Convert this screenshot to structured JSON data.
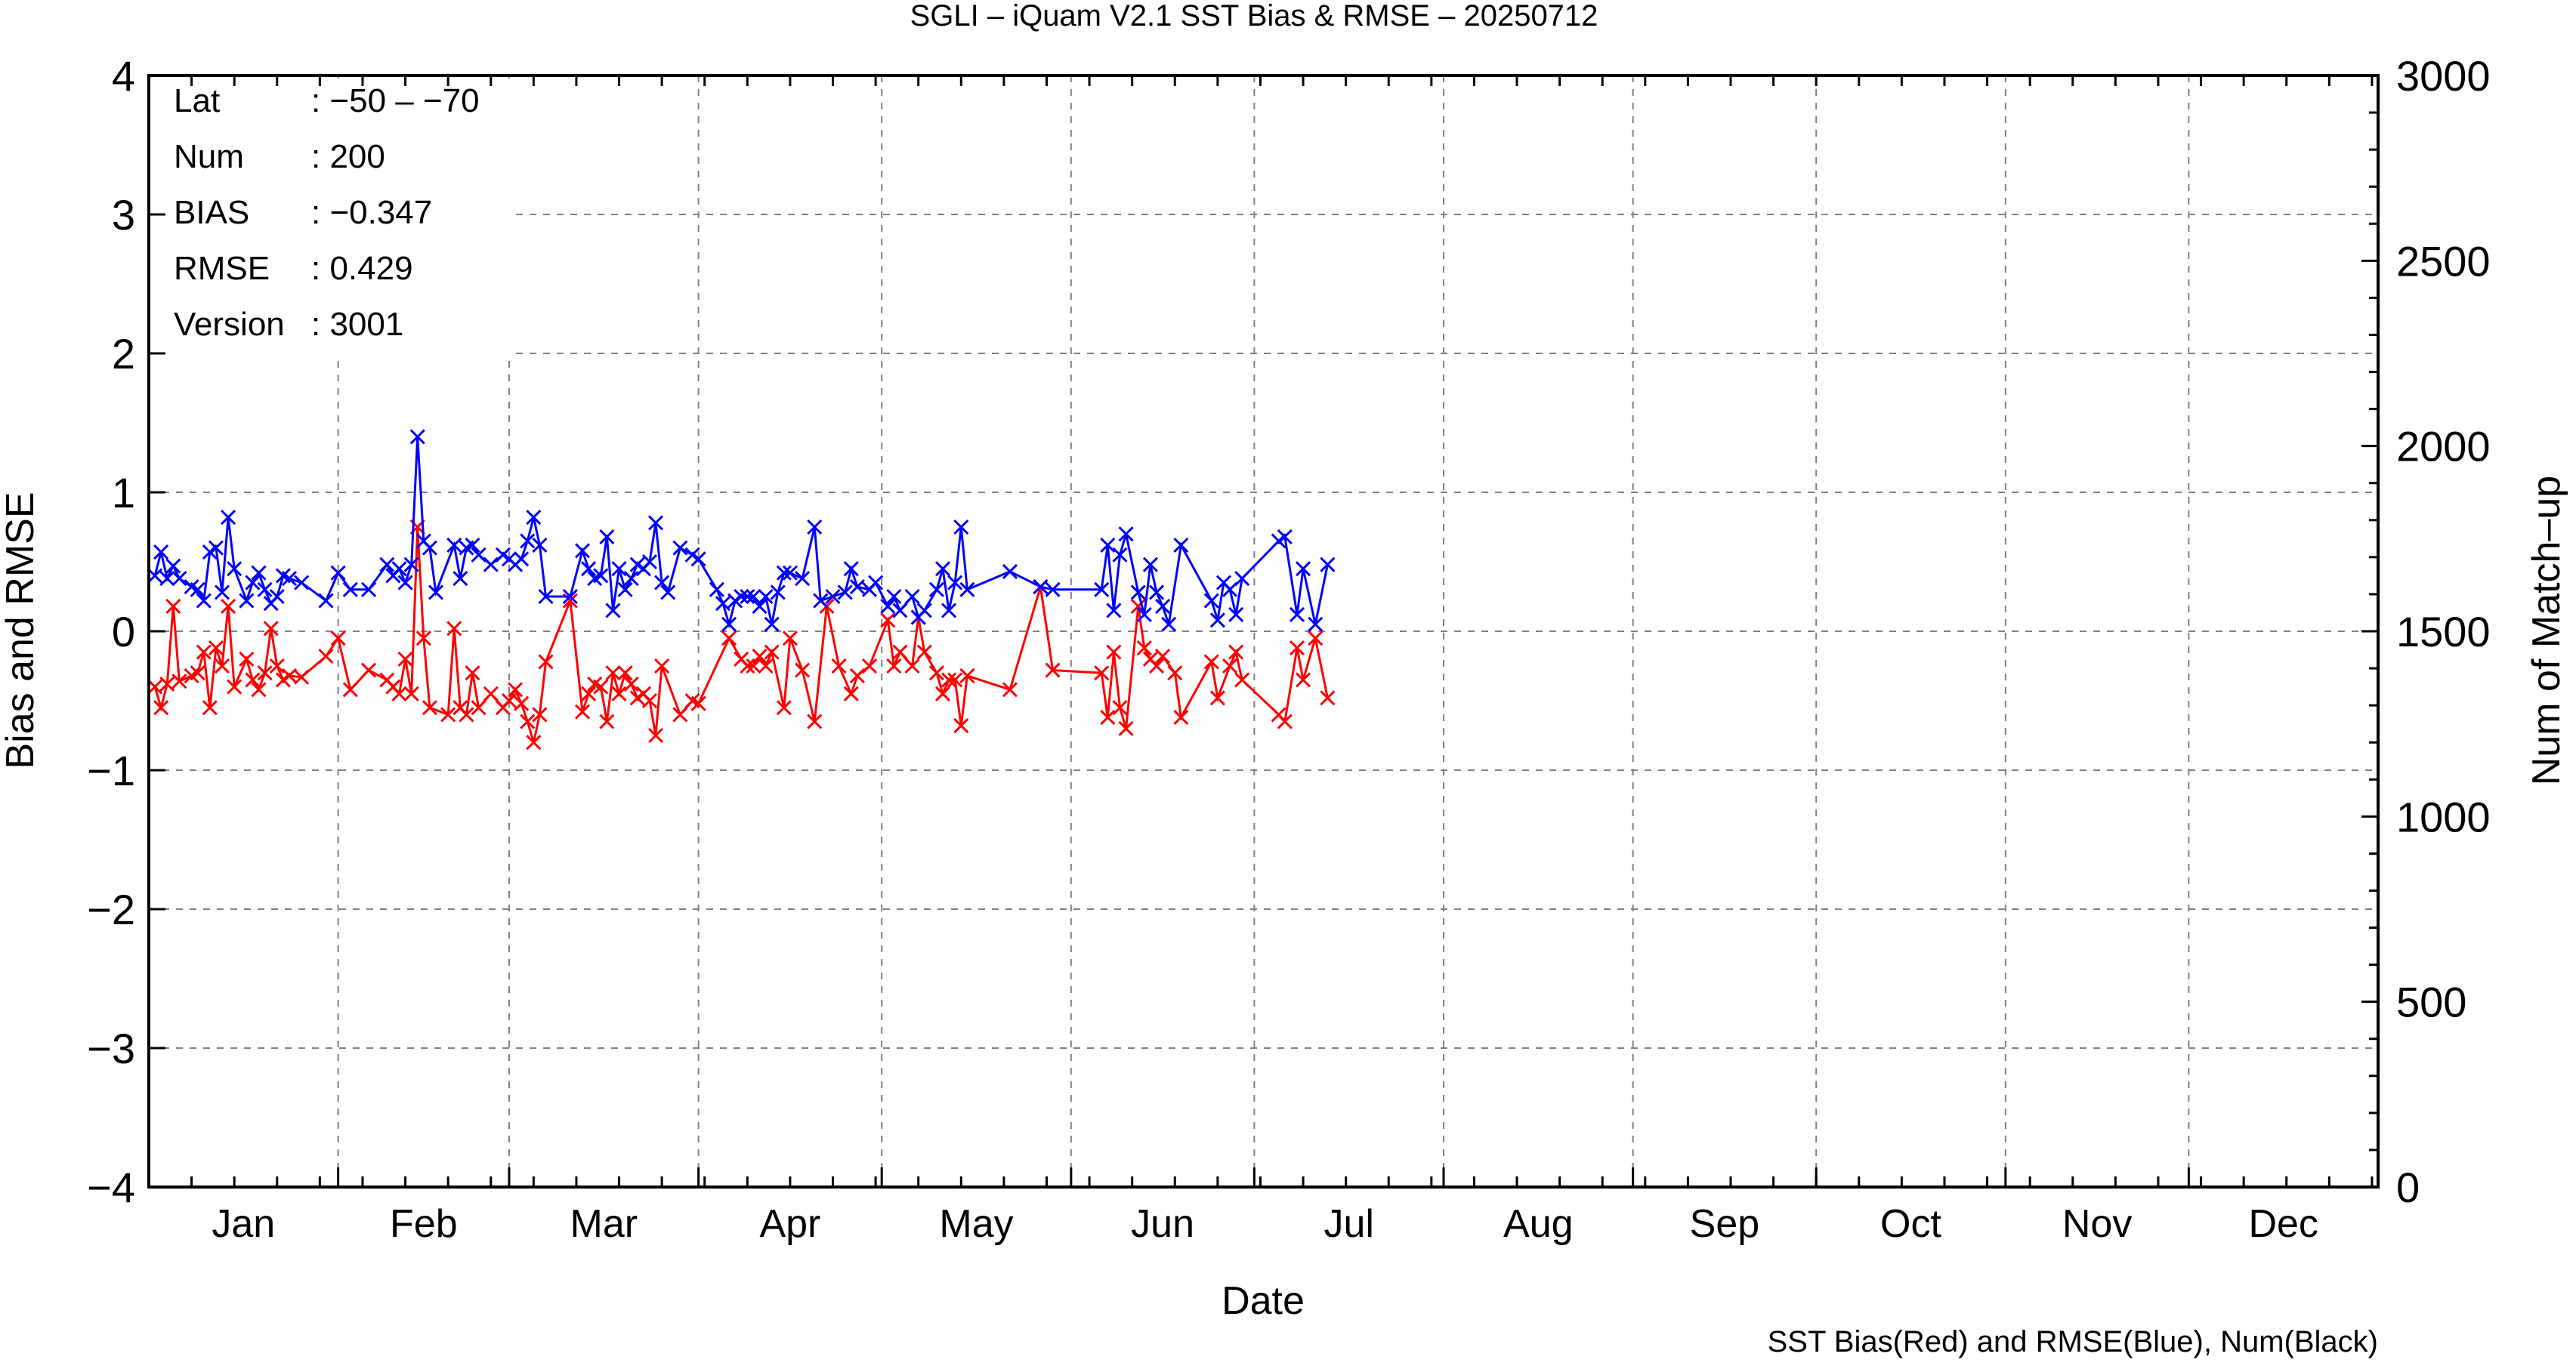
{
  "chart_data": {
    "type": "line",
    "title": "SGLI – iQuam V2.1 SST Bias & RMSE  – 20250712",
    "xlabel": "Date",
    "ylabel_left": "Bias and RMSE",
    "ylabel_right": "Num of Match–up",
    "footer": "SST Bias(Red) and RMSE(Blue), Num(Black)",
    "x_unit": "day of year 2025",
    "xlim": [
      1,
      366
    ],
    "ylim_left": [
      -4,
      4
    ],
    "ylim_right": [
      0,
      3000
    ],
    "yticks_left": [
      "−4",
      "−3",
      "−2",
      "−1",
      "0",
      "1",
      "2",
      "3",
      "4"
    ],
    "yticks_right": [
      "0",
      "500",
      "1000",
      "1500",
      "2000",
      "2500",
      "3000"
    ],
    "months": [
      {
        "label": "Jan",
        "start": 1,
        "days": 31
      },
      {
        "label": "Feb",
        "start": 32,
        "days": 28
      },
      {
        "label": "Mar",
        "start": 60,
        "days": 31
      },
      {
        "label": "Apr",
        "start": 91,
        "days": 30
      },
      {
        "label": "May",
        "start": 121,
        "days": 31
      },
      {
        "label": "Jun",
        "start": 152,
        "days": 30
      },
      {
        "label": "Jul",
        "start": 182,
        "days": 31
      },
      {
        "label": "Aug",
        "start": 213,
        "days": 31
      },
      {
        "label": "Sep",
        "start": 244,
        "days": 30
      },
      {
        "label": "Oct",
        "start": 274,
        "days": 31
      },
      {
        "label": "Nov",
        "start": 305,
        "days": 30
      },
      {
        "label": "Dec",
        "start": 335,
        "days": 31
      }
    ],
    "grid": true,
    "stats": [
      {
        "key": "Lat",
        "value": ": −50 – −70"
      },
      {
        "key": "Num",
        "value": ": 200"
      },
      {
        "key": "BIAS",
        "value": ": −0.347"
      },
      {
        "key": "RMSE",
        "value": ": 0.429"
      },
      {
        "key": "Version",
        "value": ": 3001"
      }
    ],
    "series": [
      {
        "color": "#ff0000",
        "points": [
          [
            2,
            -0.4
          ],
          [
            3,
            -0.55
          ],
          [
            4,
            -0.38
          ],
          [
            5,
            0.18
          ],
          [
            6,
            -0.36
          ],
          [
            8,
            -0.32
          ],
          [
            9,
            -0.3
          ],
          [
            10,
            -0.15
          ],
          [
            11,
            -0.55
          ],
          [
            12,
            -0.12
          ],
          [
            13,
            -0.25
          ],
          [
            14,
            0.18
          ],
          [
            15,
            -0.4
          ],
          [
            17,
            -0.2
          ],
          [
            18,
            -0.35
          ],
          [
            19,
            -0.42
          ],
          [
            20,
            -0.3
          ],
          [
            21,
            0.02
          ],
          [
            22,
            -0.25
          ],
          [
            23,
            -0.35
          ],
          [
            24,
            -0.32
          ],
          [
            26,
            -0.33
          ],
          [
            30,
            -0.18
          ],
          [
            32,
            -0.05
          ],
          [
            34,
            -0.42
          ],
          [
            37,
            -0.28
          ],
          [
            40,
            -0.35
          ],
          [
            41,
            -0.4
          ],
          [
            42,
            -0.45
          ],
          [
            43,
            -0.2
          ],
          [
            44,
            -0.45
          ],
          [
            45,
            0.75
          ],
          [
            46,
            -0.05
          ],
          [
            47,
            -0.55
          ],
          [
            50,
            -0.6
          ],
          [
            51,
            0.02
          ],
          [
            52,
            -0.55
          ],
          [
            53,
            -0.6
          ],
          [
            54,
            -0.3
          ],
          [
            55,
            -0.55
          ],
          [
            57,
            -0.45
          ],
          [
            59,
            -0.55
          ],
          [
            60,
            -0.5
          ],
          [
            61,
            -0.42
          ],
          [
            62,
            -0.52
          ],
          [
            63,
            -0.65
          ],
          [
            64,
            -0.8
          ],
          [
            65,
            -0.6
          ],
          [
            66,
            -0.22
          ],
          [
            70,
            0.22
          ],
          [
            72,
            -0.58
          ],
          [
            73,
            -0.45
          ],
          [
            74,
            -0.38
          ],
          [
            75,
            -0.4
          ],
          [
            76,
            -0.65
          ],
          [
            77,
            -0.3
          ],
          [
            78,
            -0.45
          ],
          [
            79,
            -0.3
          ],
          [
            80,
            -0.38
          ],
          [
            81,
            -0.48
          ],
          [
            82,
            -0.45
          ],
          [
            83,
            -0.5
          ],
          [
            84,
            -0.75
          ],
          [
            85,
            -0.25
          ],
          [
            88,
            -0.6
          ],
          [
            90,
            -0.5
          ],
          [
            91,
            -0.52
          ],
          [
            96,
            -0.05
          ],
          [
            98,
            -0.2
          ],
          [
            99,
            -0.25
          ],
          [
            100,
            -0.25
          ],
          [
            101,
            -0.18
          ],
          [
            102,
            -0.25
          ],
          [
            103,
            -0.15
          ],
          [
            105,
            -0.55
          ],
          [
            106,
            -0.05
          ],
          [
            108,
            -0.28
          ],
          [
            110,
            -0.65
          ],
          [
            112,
            0.18
          ],
          [
            114,
            -0.25
          ],
          [
            116,
            -0.45
          ],
          [
            117,
            -0.32
          ],
          [
            119,
            -0.25
          ],
          [
            122,
            0.08
          ],
          [
            123,
            -0.25
          ],
          [
            124,
            -0.15
          ],
          [
            126,
            -0.25
          ],
          [
            127,
            0.1
          ],
          [
            128,
            -0.15
          ],
          [
            130,
            -0.3
          ],
          [
            131,
            -0.45
          ],
          [
            132,
            -0.35
          ],
          [
            133,
            -0.35
          ],
          [
            134,
            -0.68
          ],
          [
            135,
            -0.32
          ],
          [
            142,
            -0.42
          ],
          [
            147,
            0.32
          ],
          [
            149,
            -0.28
          ],
          [
            157,
            -0.3
          ],
          [
            158,
            -0.62
          ],
          [
            159,
            -0.15
          ],
          [
            160,
            -0.55
          ],
          [
            161,
            -0.7
          ],
          [
            163,
            0.18
          ],
          [
            164,
            -0.12
          ],
          [
            165,
            -0.2
          ],
          [
            166,
            -0.25
          ],
          [
            167,
            -0.18
          ],
          [
            169,
            -0.3
          ],
          [
            170,
            -0.62
          ],
          [
            175,
            -0.22
          ],
          [
            176,
            -0.48
          ],
          [
            178,
            -0.25
          ],
          [
            179,
            -0.15
          ],
          [
            180,
            -0.35
          ],
          [
            186,
            -0.6
          ],
          [
            187,
            -0.65
          ],
          [
            189,
            -0.12
          ],
          [
            190,
            -0.35
          ],
          [
            192,
            -0.05
          ],
          [
            194,
            -0.48
          ]
        ]
      },
      {
        "color": "#0000ff",
        "points": [
          [
            2,
            0.4
          ],
          [
            3,
            0.57
          ],
          [
            4,
            0.38
          ],
          [
            5,
            0.47
          ],
          [
            6,
            0.38
          ],
          [
            8,
            0.32
          ],
          [
            9,
            0.3
          ],
          [
            10,
            0.22
          ],
          [
            11,
            0.57
          ],
          [
            12,
            0.6
          ],
          [
            13,
            0.28
          ],
          [
            14,
            0.82
          ],
          [
            15,
            0.45
          ],
          [
            17,
            0.22
          ],
          [
            18,
            0.35
          ],
          [
            19,
            0.42
          ],
          [
            20,
            0.3
          ],
          [
            21,
            0.2
          ],
          [
            22,
            0.25
          ],
          [
            23,
            0.4
          ],
          [
            24,
            0.38
          ],
          [
            26,
            0.35
          ],
          [
            30,
            0.22
          ],
          [
            32,
            0.42
          ],
          [
            34,
            0.3
          ],
          [
            37,
            0.3
          ],
          [
            40,
            0.48
          ],
          [
            41,
            0.4
          ],
          [
            42,
            0.45
          ],
          [
            43,
            0.35
          ],
          [
            44,
            0.48
          ],
          [
            45,
            1.4
          ],
          [
            46,
            0.65
          ],
          [
            47,
            0.6
          ],
          [
            48,
            0.28
          ],
          [
            51,
            0.62
          ],
          [
            52,
            0.38
          ],
          [
            53,
            0.6
          ],
          [
            54,
            0.62
          ],
          [
            55,
            0.55
          ],
          [
            57,
            0.48
          ],
          [
            59,
            0.55
          ],
          [
            60,
            0.52
          ],
          [
            61,
            0.48
          ],
          [
            62,
            0.52
          ],
          [
            63,
            0.65
          ],
          [
            64,
            0.82
          ],
          [
            65,
            0.62
          ],
          [
            66,
            0.25
          ],
          [
            70,
            0.25
          ],
          [
            72,
            0.58
          ],
          [
            73,
            0.45
          ],
          [
            74,
            0.38
          ],
          [
            75,
            0.4
          ],
          [
            76,
            0.68
          ],
          [
            77,
            0.15
          ],
          [
            78,
            0.45
          ],
          [
            79,
            0.3
          ],
          [
            80,
            0.38
          ],
          [
            81,
            0.48
          ],
          [
            82,
            0.45
          ],
          [
            83,
            0.5
          ],
          [
            84,
            0.78
          ],
          [
            85,
            0.35
          ],
          [
            86,
            0.28
          ],
          [
            88,
            0.6
          ],
          [
            90,
            0.55
          ],
          [
            91,
            0.52
          ],
          [
            94,
            0.3
          ],
          [
            95,
            0.2
          ],
          [
            96,
            0.05
          ],
          [
            97,
            0.22
          ],
          [
            98,
            0.25
          ],
          [
            99,
            0.25
          ],
          [
            100,
            0.25
          ],
          [
            101,
            0.18
          ],
          [
            102,
            0.25
          ],
          [
            103,
            0.05
          ],
          [
            104,
            0.28
          ],
          [
            105,
            0.42
          ],
          [
            106,
            0.42
          ],
          [
            108,
            0.38
          ],
          [
            110,
            0.75
          ],
          [
            111,
            0.22
          ],
          [
            113,
            0.25
          ],
          [
            115,
            0.28
          ],
          [
            116,
            0.45
          ],
          [
            117,
            0.32
          ],
          [
            119,
            0.3
          ],
          [
            120,
            0.35
          ],
          [
            122,
            0.18
          ],
          [
            123,
            0.25
          ],
          [
            124,
            0.15
          ],
          [
            126,
            0.25
          ],
          [
            127,
            0.1
          ],
          [
            128,
            0.15
          ],
          [
            130,
            0.3
          ],
          [
            131,
            0.45
          ],
          [
            132,
            0.15
          ],
          [
            133,
            0.35
          ],
          [
            134,
            0.75
          ],
          [
            135,
            0.3
          ],
          [
            142,
            0.43
          ],
          [
            147,
            0.32
          ],
          [
            149,
            0.3
          ],
          [
            157,
            0.3
          ],
          [
            158,
            0.62
          ],
          [
            159,
            0.15
          ],
          [
            160,
            0.55
          ],
          [
            161,
            0.7
          ],
          [
            163,
            0.28
          ],
          [
            164,
            0.12
          ],
          [
            165,
            0.48
          ],
          [
            166,
            0.28
          ],
          [
            167,
            0.18
          ],
          [
            168,
            0.05
          ],
          [
            170,
            0.62
          ],
          [
            175,
            0.22
          ],
          [
            176,
            0.08
          ],
          [
            177,
            0.35
          ],
          [
            178,
            0.3
          ],
          [
            179,
            0.12
          ],
          [
            180,
            0.38
          ],
          [
            186,
            0.65
          ],
          [
            187,
            0.68
          ],
          [
            189,
            0.12
          ],
          [
            190,
            0.45
          ],
          [
            192,
            0.05
          ],
          [
            194,
            0.48
          ]
        ]
      }
    ]
  }
}
